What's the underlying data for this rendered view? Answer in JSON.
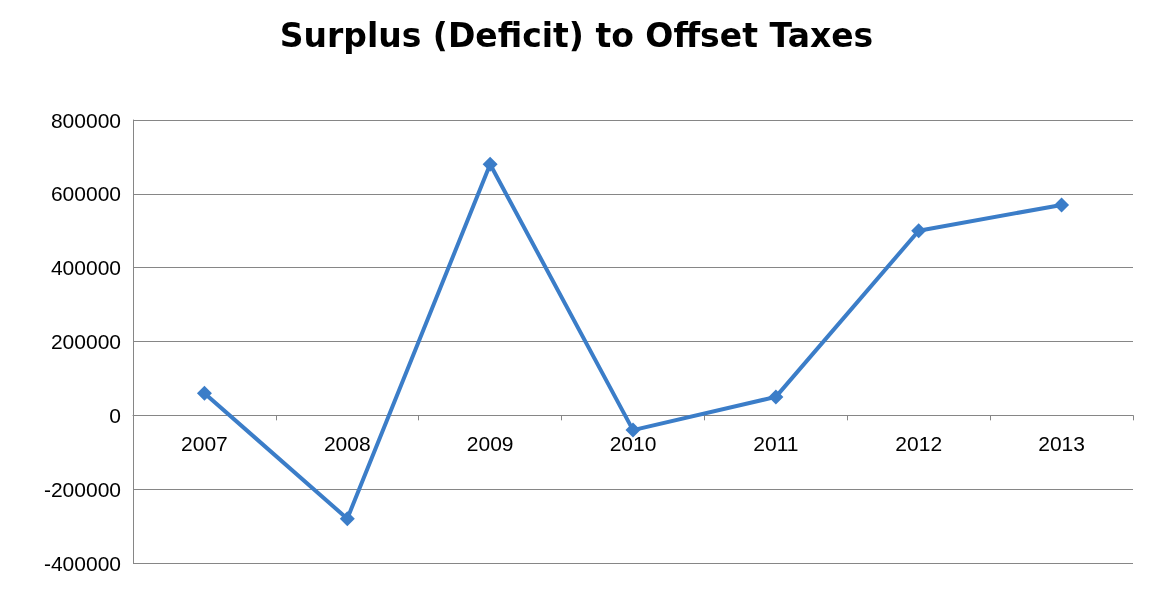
{
  "chart_data": {
    "type": "line",
    "title": "Surplus (Deficit) to Offset Taxes",
    "categories": [
      "2007",
      "2008",
      "2009",
      "2010",
      "2011",
      "2012",
      "2013"
    ],
    "series": [
      {
        "color": "#3b7dc8",
        "values": [
          60000,
          -280000,
          680000,
          -40000,
          50000,
          500000,
          570000
        ]
      }
    ],
    "ylim": [
      -400000,
      800000
    ],
    "yticks": [
      -400000,
      -200000,
      0,
      200000,
      400000,
      600000,
      800000
    ],
    "grid": "y",
    "marker": "diamond",
    "line_style": "solid"
  }
}
